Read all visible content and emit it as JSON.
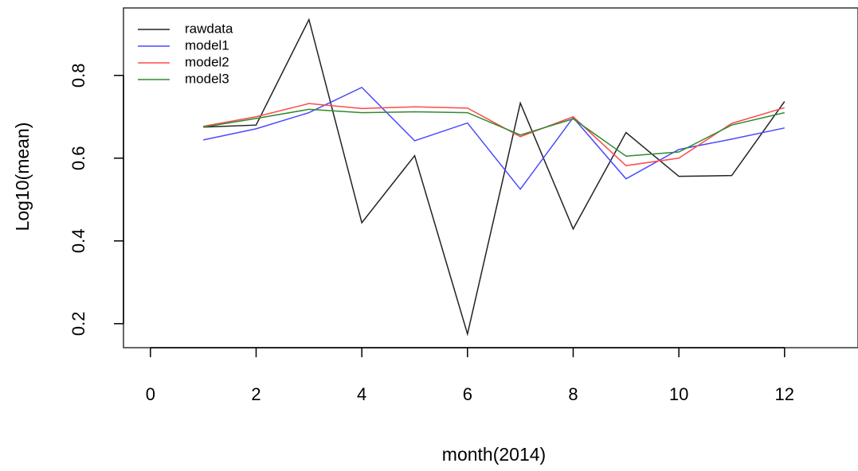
{
  "chart_data": {
    "type": "line",
    "x_label": "month(2014)",
    "y_label": "Log10(mean)",
    "x": [
      1,
      2,
      3,
      4,
      5,
      6,
      7,
      8,
      9,
      10,
      11,
      12
    ],
    "series": [
      {
        "name": "rawdata",
        "color": "#222222",
        "values": [
          0.675,
          0.68,
          0.935,
          0.444,
          0.606,
          0.175,
          0.733,
          0.429,
          0.662,
          0.556,
          0.558,
          0.737
        ]
      },
      {
        "name": "model1",
        "color": "#4a4aff",
        "values": [
          0.644,
          0.671,
          0.71,
          0.771,
          0.642,
          0.685,
          0.525,
          0.698,
          0.55,
          0.621,
          0.646,
          0.673
        ]
      },
      {
        "name": "model2",
        "color": "#ff4a4a",
        "values": [
          0.677,
          0.7,
          0.732,
          0.72,
          0.724,
          0.721,
          0.652,
          0.7,
          0.582,
          0.6,
          0.684,
          0.722
        ]
      },
      {
        "name": "model3",
        "color": "#2e8b2e",
        "values": [
          0.675,
          0.696,
          0.718,
          0.71,
          0.712,
          0.71,
          0.656,
          0.695,
          0.605,
          0.615,
          0.68,
          0.71
        ]
      }
    ],
    "xlim": [
      -0.51,
      13.39
    ],
    "ylim": [
      0.142,
      0.963
    ],
    "xticks": [
      0,
      2,
      4,
      6,
      8,
      10,
      12
    ],
    "yticks": [
      0.2,
      0.4,
      0.6,
      0.8
    ],
    "legend": "topleft"
  }
}
